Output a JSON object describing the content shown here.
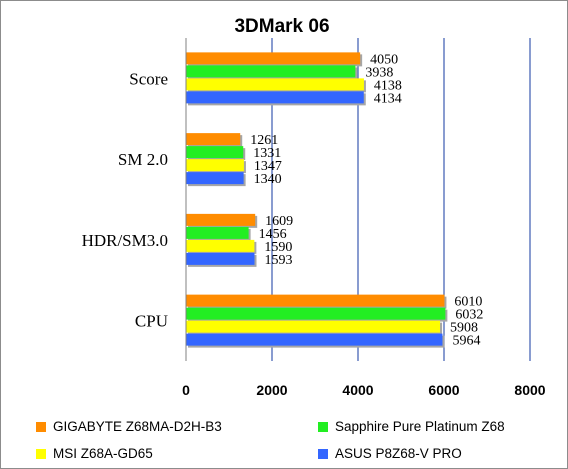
{
  "chart_data": {
    "type": "bar",
    "orientation": "horizontal",
    "title": "3DMark 06",
    "categories": [
      "Score",
      "SM 2.0",
      "HDR/SM3.0",
      "CPU"
    ],
    "series": [
      {
        "name": "GIGABYTE Z68MA-D2H-B3",
        "color": "#ff8c00",
        "values": [
          4050,
          1261,
          1609,
          6010
        ]
      },
      {
        "name": "Sapphire Pure Platinum  Z68",
        "color": "#22ee22",
        "values": [
          3938,
          1331,
          1456,
          6032
        ]
      },
      {
        "name": "MSI Z68A-GD65",
        "color": "#ffff00",
        "values": [
          4138,
          1347,
          1590,
          5908
        ]
      },
      {
        "name": "ASUS P8Z68-V PRO",
        "color": "#3366ff",
        "values": [
          4134,
          1340,
          1593,
          5964
        ]
      }
    ],
    "xlim": [
      0,
      8000
    ],
    "xticks": [
      0,
      2000,
      4000,
      6000,
      8000
    ],
    "xlabel": "",
    "ylabel": "",
    "grid": "vertical",
    "legend_position": "bottom"
  }
}
